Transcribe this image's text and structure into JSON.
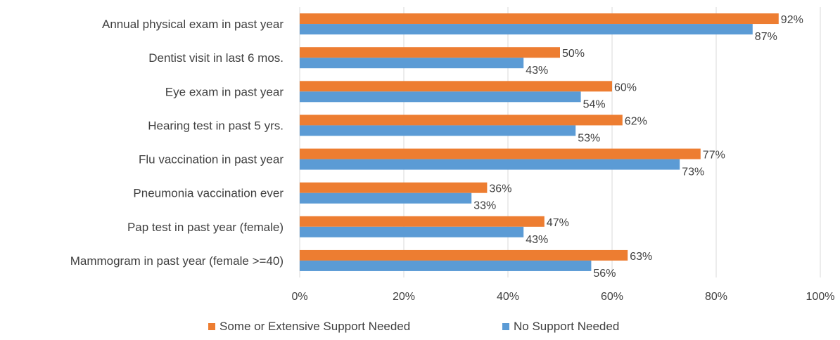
{
  "chart_data": {
    "type": "bar",
    "orientation": "horizontal",
    "title": "",
    "xlabel": "",
    "ylabel": "",
    "xlim": [
      0,
      100
    ],
    "ticks": [
      "0%",
      "20%",
      "40%",
      "60%",
      "80%",
      "100%"
    ],
    "tick_values": [
      0,
      20,
      40,
      60,
      80,
      100
    ],
    "grid": true,
    "legend_position": "bottom",
    "categories": [
      "Annual physical exam in past year",
      "Dentist visit in last 6 mos.",
      "Eye exam in past year",
      "Hearing test in past 5 yrs.",
      "Flu vaccination in past year",
      "Pneumonia vaccination ever",
      "Pap test in past year (female)",
      "Mammogram in past year (female >=40)"
    ],
    "series": [
      {
        "name": "Some or Extensive Support Needed",
        "color": "#ed7d31",
        "values": [
          92,
          50,
          60,
          62,
          77,
          36,
          47,
          63
        ],
        "labels": [
          "92%",
          "50%",
          "60%",
          "62%",
          "77%",
          "36%",
          "47%",
          "63%"
        ]
      },
      {
        "name": "No Support Needed",
        "color": "#5b9bd5",
        "values": [
          87,
          43,
          54,
          53,
          73,
          33,
          43,
          56
        ],
        "labels": [
          "87%",
          "43%",
          "54%",
          "53%",
          "73%",
          "33%",
          "43%",
          "56%"
        ]
      }
    ]
  }
}
